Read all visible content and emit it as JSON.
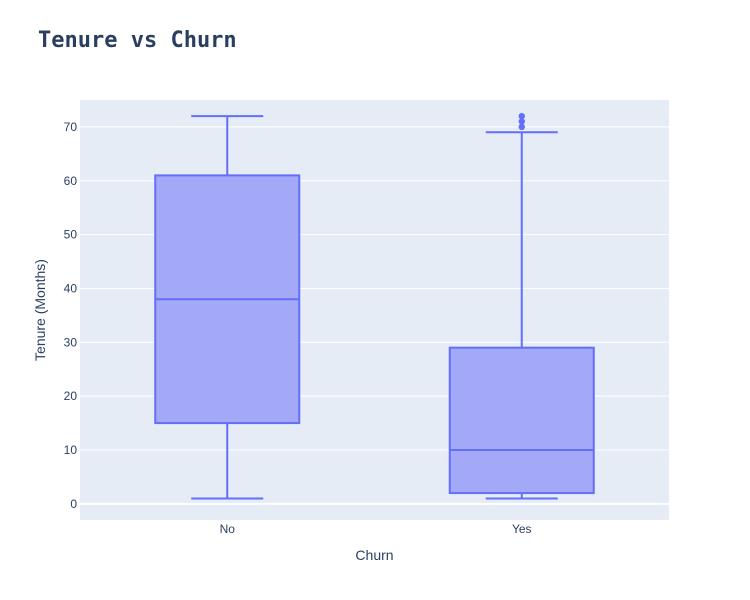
{
  "chart_data": {
    "type": "box",
    "title": "Tenure vs Churn",
    "xlabel": "Churn",
    "ylabel": "Tenure (Months)",
    "categories": [
      "No",
      "Yes"
    ],
    "ylim": [
      -3,
      75
    ],
    "yticks": [
      0,
      10,
      20,
      30,
      40,
      50,
      60,
      70
    ],
    "grid": true,
    "boxes": [
      {
        "category": "No",
        "min": 1,
        "q1": 15,
        "median": 38,
        "q3": 61,
        "max": 72,
        "outliers": []
      },
      {
        "category": "Yes",
        "min": 1,
        "q1": 2,
        "median": 10,
        "q3": 29,
        "max": 69,
        "outliers": [
          70,
          71,
          72
        ]
      }
    ],
    "colors": {
      "line": "#636efa",
      "fill": "#a3a9f6",
      "plot_bg": "#e5ecf6",
      "grid": "#ffffff",
      "text": "#2a3f5f"
    }
  }
}
